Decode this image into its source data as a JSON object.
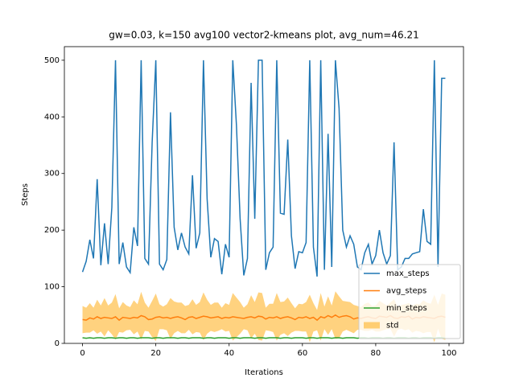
{
  "chart_data": {
    "type": "line",
    "title": "gw=0.03, k=150 avg100 vector2-kmeans plot, avg_num=46.21",
    "x_label": "Iterations",
    "y_label": "Steps",
    "x": [
      0,
      1,
      2,
      3,
      4,
      5,
      6,
      7,
      8,
      9,
      10,
      11,
      12,
      13,
      14,
      15,
      16,
      17,
      18,
      19,
      20,
      21,
      22,
      23,
      24,
      25,
      26,
      27,
      28,
      29,
      30,
      31,
      32,
      33,
      34,
      35,
      36,
      37,
      38,
      39,
      40,
      41,
      42,
      43,
      44,
      45,
      46,
      47,
      48,
      49,
      50,
      51,
      52,
      53,
      54,
      55,
      56,
      57,
      58,
      59,
      60,
      61,
      62,
      63,
      64,
      65,
      66,
      67,
      68,
      69,
      70,
      71,
      72,
      73,
      74,
      75,
      76,
      77,
      78,
      79,
      80,
      81,
      82,
      83,
      84,
      85,
      86,
      87,
      88,
      89,
      90,
      91,
      92,
      93,
      94,
      95,
      96,
      97,
      98,
      99
    ],
    "series": [
      {
        "name": "max_steps",
        "color": "#1f77b4",
        "values": [
          126,
          145,
          183,
          150,
          290,
          138,
          212,
          140,
          240,
          500,
          140,
          178,
          135,
          125,
          205,
          172,
          500,
          150,
          140,
          355,
          500,
          140,
          130,
          148,
          408,
          205,
          165,
          195,
          170,
          158,
          297,
          168,
          195,
          500,
          255,
          152,
          185,
          180,
          122,
          175,
          152,
          500,
          385,
          220,
          120,
          150,
          460,
          220,
          500,
          500,
          130,
          160,
          170,
          500,
          230,
          228,
          360,
          190,
          132,
          162,
          160,
          178,
          500,
          170,
          118,
          500,
          130,
          370,
          135,
          500,
          415,
          200,
          170,
          190,
          175,
          135,
          130,
          160,
          175,
          140,
          155,
          200,
          160,
          140,
          155,
          355,
          130,
          135,
          150,
          150,
          158,
          160,
          162,
          237,
          180,
          175,
          500,
          135,
          468,
          468
        ]
      },
      {
        "name": "avg_steps",
        "color": "#ff7f0e",
        "values": [
          42,
          41,
          45,
          43,
          47,
          44,
          46,
          45,
          44,
          47,
          41,
          46,
          45,
          44,
          46,
          45,
          49,
          47,
          42,
          43,
          46,
          47,
          45,
          46,
          44,
          46,
          47,
          45,
          42,
          46,
          47,
          44,
          46,
          48,
          47,
          45,
          46,
          47,
          44,
          46,
          45,
          47,
          46,
          45,
          44,
          46,
          47,
          45,
          48,
          47,
          43,
          46,
          45,
          47,
          44,
          46,
          47,
          45,
          42,
          46,
          45,
          47,
          44,
          46,
          41,
          47,
          45,
          49,
          46,
          50,
          46,
          48,
          49,
          47,
          43,
          45,
          44,
          46,
          47,
          45,
          44,
          48,
          47,
          46,
          49,
          45,
          44,
          47,
          46,
          48,
          43,
          46,
          45,
          47,
          46,
          45,
          44,
          47,
          48,
          46
        ]
      },
      {
        "name": "min_steps",
        "color": "#2ca02c",
        "values": [
          10,
          9,
          10,
          9,
          10,
          10,
          9,
          10,
          10,
          9,
          10,
          10,
          9,
          10,
          10,
          9,
          10,
          10,
          10,
          9,
          10,
          10,
          9,
          10,
          10,
          10,
          9,
          10,
          10,
          9,
          10,
          10,
          10,
          9,
          10,
          10,
          9,
          10,
          10,
          10,
          9,
          10,
          10,
          9,
          10,
          10,
          10,
          9,
          10,
          10,
          9,
          10,
          10,
          10,
          9,
          10,
          10,
          9,
          10,
          10,
          10,
          9,
          10,
          10,
          9,
          10,
          10,
          10,
          9,
          10,
          10,
          9,
          10,
          10,
          10,
          9,
          10,
          10,
          9,
          10,
          10,
          10,
          9,
          10,
          10,
          9,
          10,
          10,
          10,
          9,
          10,
          10,
          9,
          10,
          10,
          10,
          9,
          10,
          10,
          9
        ]
      },
      {
        "name": "std",
        "color": "orange",
        "values": [
          24,
          22,
          26,
          20,
          30,
          23,
          34,
          22,
          28,
          40,
          21,
          27,
          22,
          20,
          30,
          24,
          42,
          25,
          21,
          32,
          42,
          22,
          20,
          23,
          36,
          28,
          25,
          27,
          24,
          22,
          31,
          24,
          27,
          42,
          30,
          23,
          26,
          25,
          19,
          25,
          23,
          42,
          35,
          28,
          19,
          23,
          38,
          28,
          42,
          42,
          20,
          24,
          25,
          42,
          29,
          28,
          34,
          26,
          20,
          24,
          24,
          26,
          42,
          25,
          18,
          42,
          20,
          34,
          21,
          42,
          37,
          27,
          25,
          26,
          25,
          21,
          20,
          24,
          25,
          21,
          23,
          27,
          24,
          21,
          23,
          33,
          20,
          21,
          23,
          23,
          24,
          24,
          24,
          29,
          26,
          25,
          42,
          21,
          40,
          40
        ]
      }
    ],
    "xlim": [
      -4.95,
      103.95
    ],
    "ylim": [
      0,
      524
    ],
    "xticks": [
      0,
      20,
      40,
      60,
      80,
      100
    ],
    "yticks": [
      0,
      100,
      200,
      300,
      400,
      500
    ],
    "legend": "lower right"
  }
}
